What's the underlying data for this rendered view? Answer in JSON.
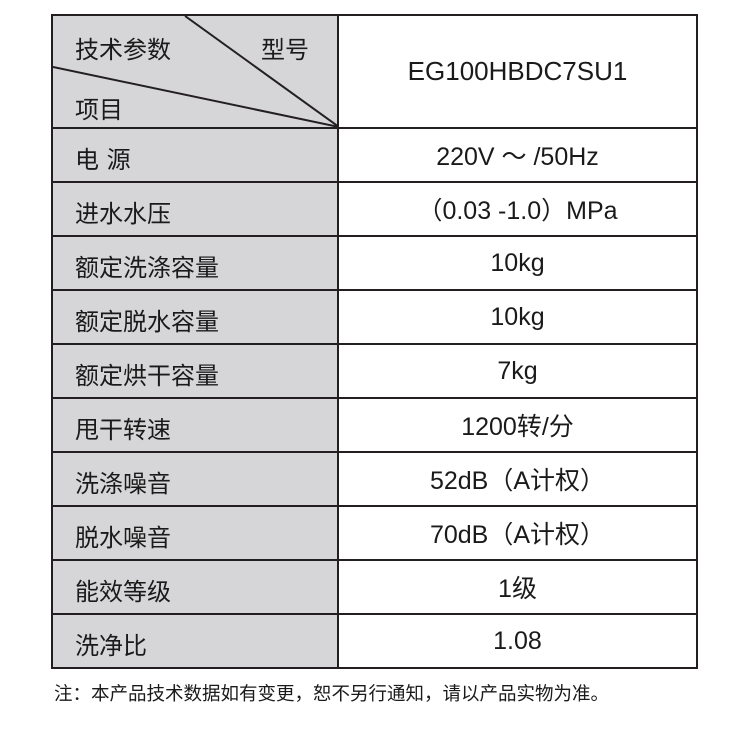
{
  "header": {
    "param_label": "技术参数",
    "model_label": "型号",
    "item_label": "项目",
    "model_value": "EG100HBDC7SU1"
  },
  "rows": [
    {
      "label": "电 源",
      "value": "220V ～ /50Hz"
    },
    {
      "label": "进水水压",
      "value": "（0.03 -1.0）MPa"
    },
    {
      "label": "额定洗涤容量",
      "value": "10kg"
    },
    {
      "label": "额定脱水容量",
      "value": "10kg"
    },
    {
      "label": "额定烘干容量",
      "value": "7kg"
    },
    {
      "label": "甩干转速",
      "value": "1200转/分"
    },
    {
      "label": "洗涤噪音",
      "value": "52dB（A计权）"
    },
    {
      "label": "脱水噪音",
      "value": "70dB（A计权）"
    },
    {
      "label": "能效等级",
      "value": "1级"
    },
    {
      "label": "洗净比",
      "value": "1.08"
    }
  ],
  "note": "注：本产品技术数据如有变更，恕不另行通知，请以产品实物为准。",
  "colors": {
    "label_bg": "#d6d6d8",
    "border": "#231f20"
  }
}
